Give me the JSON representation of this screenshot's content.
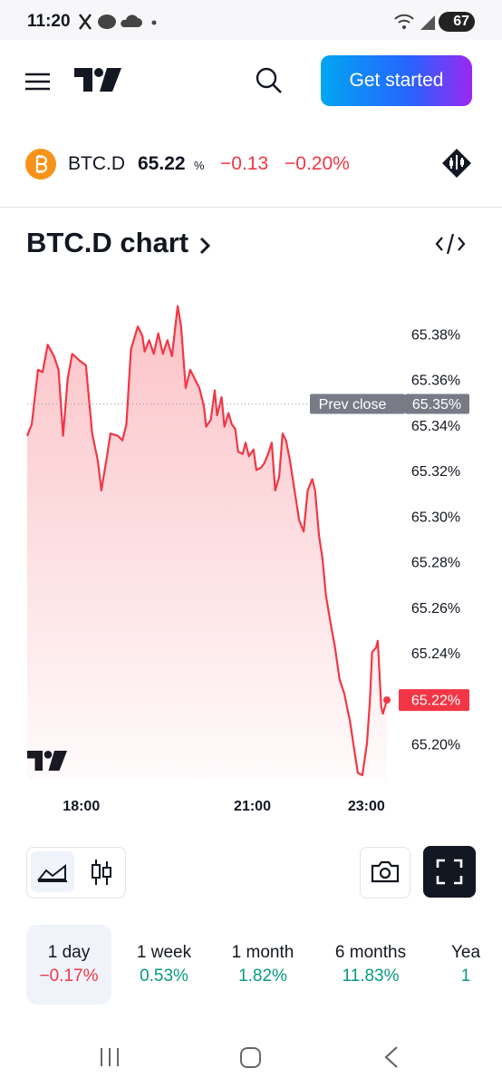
{
  "status_bar": {
    "time": "11:20",
    "battery": "67"
  },
  "header": {
    "button": "Get started"
  },
  "ticker": {
    "symbol": "BTC.D",
    "price": "65.22",
    "unit": "%",
    "change": "−0.13",
    "change_percent": "−0.20%"
  },
  "chart_section": {
    "title": "BTC.D chart"
  },
  "chart_data": {
    "type": "line",
    "x": [
      17.05,
      17.13,
      17.24,
      17.32,
      17.41,
      17.52,
      17.6,
      17.68,
      17.76,
      17.84,
      17.97,
      18.08,
      18.19,
      18.29,
      18.35,
      18.45,
      18.51,
      18.64,
      18.72,
      18.79,
      18.87,
      18.99,
      19.07,
      19.11,
      19.19,
      19.27,
      19.35,
      19.43,
      19.51,
      19.59,
      19.69,
      19.75,
      19.83,
      19.91,
      19.99,
      20.07,
      20.15,
      20.19,
      20.27,
      20.34,
      20.38,
      20.46,
      20.51,
      20.58,
      20.64,
      20.7,
      20.75,
      20.83,
      20.88,
      20.94,
      21.02,
      21.07,
      21.15,
      21.21,
      21.29,
      21.34,
      21.4,
      21.47,
      21.53,
      21.59,
      21.66,
      21.74,
      21.82,
      21.9,
      21.97,
      22.05,
      22.1,
      22.17,
      22.23,
      22.29,
      22.37,
      22.45,
      22.53,
      22.61,
      22.71,
      22.77,
      22.85,
      22.93,
      23.01,
      23.06,
      23.1,
      23.17,
      23.2,
      23.26,
      23.29,
      23.36
    ],
    "series": [
      {
        "color": "#f23645",
        "values": [
          65.336,
          65.341,
          65.365,
          65.364,
          65.376,
          65.371,
          65.365,
          65.336,
          65.361,
          65.372,
          65.369,
          65.367,
          65.337,
          65.325,
          65.312,
          65.327,
          65.337,
          65.336,
          65.334,
          65.341,
          65.374,
          65.384,
          65.38,
          65.373,
          65.378,
          65.372,
          65.381,
          65.372,
          65.378,
          65.371,
          65.393,
          65.384,
          65.357,
          65.365,
          65.361,
          65.357,
          65.349,
          65.34,
          65.343,
          65.356,
          65.345,
          65.353,
          65.34,
          65.346,
          65.341,
          65.339,
          65.329,
          65.328,
          65.333,
          65.327,
          65.33,
          65.321,
          65.322,
          65.324,
          65.329,
          65.333,
          65.312,
          65.318,
          65.337,
          65.334,
          65.325,
          65.312,
          65.299,
          65.294,
          65.312,
          65.317,
          65.312,
          65.292,
          65.282,
          65.266,
          65.254,
          65.243,
          65.229,
          65.223,
          65.211,
          65.201,
          65.188,
          65.187,
          65.201,
          65.219,
          65.241,
          65.243,
          65.246,
          65.217,
          65.214,
          65.22
        ]
      }
    ],
    "xlim": [
      17.05,
      23.36
    ],
    "xticks": [
      {
        "value": 18,
        "label": "18:00"
      },
      {
        "value": 21,
        "label": "21:00"
      },
      {
        "value": 23,
        "label": "23:00"
      }
    ],
    "ylim": [
      65.185,
      65.396
    ],
    "yticks": [
      {
        "value": 65.2,
        "label": "65.20%"
      },
      {
        "value": 65.22,
        "label": "65.22%"
      },
      {
        "value": 65.24,
        "label": "65.24%"
      },
      {
        "value": 65.26,
        "label": "65.26%"
      },
      {
        "value": 65.28,
        "label": "65.28%"
      },
      {
        "value": 65.3,
        "label": "65.30%"
      },
      {
        "value": 65.32,
        "label": "65.32%"
      },
      {
        "value": 65.34,
        "label": "65.34%"
      },
      {
        "value": 65.36,
        "label": "65.36%"
      },
      {
        "value": 65.38,
        "label": "65.38%"
      }
    ],
    "prev_close": {
      "title": "Prev close",
      "value": 65.35,
      "label": "65.35%"
    },
    "last_price": {
      "value": 65.22,
      "label": "65.22%"
    }
  },
  "periods": [
    {
      "label": "1 day",
      "change": "−0.17%",
      "color": "#f23645",
      "selected": true
    },
    {
      "label": "1 week",
      "change": "0.53%",
      "color": "#089981",
      "selected": false
    },
    {
      "label": "1 month",
      "change": "1.82%",
      "color": "#089981",
      "selected": false
    },
    {
      "label": "6 months",
      "change": "11.83%",
      "color": "#089981",
      "selected": false
    },
    {
      "label": "Yea",
      "change": "1",
      "color": "#089981",
      "selected": false
    }
  ]
}
